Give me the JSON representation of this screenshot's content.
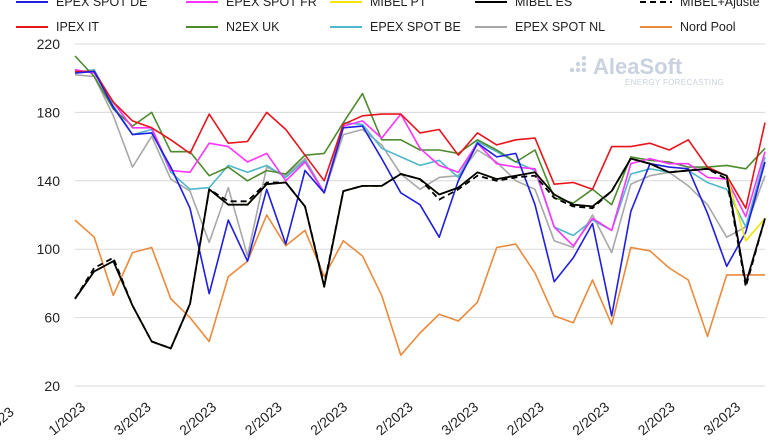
{
  "logo": {
    "name": "AleaSoft",
    "tagline": "ENERGY FORECASTING"
  },
  "chart_data": {
    "type": "line",
    "title": "",
    "xlabel": "",
    "ylabel": "",
    "ylim": [
      20,
      220
    ],
    "yticks": [
      20,
      60,
      100,
      140,
      180,
      220
    ],
    "x_tick_labels": [
      "/2023",
      "1/2023",
      "3/2023",
      "2/2023",
      "2/2023",
      "2/2023",
      "2/2023",
      "3/2023",
      "2/2023",
      "2/2023",
      "2/2023",
      "3/2023"
    ],
    "legend": [
      "EPEX SPOT DE",
      "EPEX SPOT FR",
      "MIBEL PT",
      "MIBEL ES",
      "MIBEL+Ajuste",
      "IPEX IT",
      "N2EX UK",
      "EPEX SPOT BE",
      "EPEX SPOT NL",
      "Nord Pool"
    ],
    "series": [
      {
        "name": "EPEX SPOT DE",
        "color": "#1f1fe0",
        "dash": "",
        "values": [
          203,
          204,
          183,
          167,
          168,
          148,
          124,
          74,
          117,
          93,
          135,
          103,
          146,
          133,
          171,
          172,
          153,
          133,
          126,
          107,
          140,
          162,
          154,
          156,
          126,
          81,
          95,
          115,
          61,
          122,
          150,
          148,
          147,
          121,
          90,
          110,
          151
        ]
      },
      {
        "name": "EPEX SPOT FR",
        "color": "#ff33ff",
        "dash": "",
        "values": [
          205,
          203,
          186,
          171,
          171,
          146,
          145,
          162,
          160,
          151,
          156,
          140,
          151,
          133,
          172,
          175,
          165,
          179,
          159,
          149,
          145,
          162,
          150,
          148,
          147,
          113,
          102,
          118,
          111,
          150,
          153,
          150,
          150,
          142,
          141,
          119,
          157
        ]
      },
      {
        "name": "MIBEL PT",
        "color": "#f2e600",
        "dash": "",
        "values": [
          71,
          87,
          93,
          67,
          46,
          42,
          68,
          135,
          126,
          126,
          138,
          139,
          125,
          78,
          134,
          137,
          137,
          144,
          141,
          132,
          136,
          145,
          141,
          143,
          145,
          132,
          126,
          125,
          134,
          153,
          150,
          145,
          146,
          147,
          143,
          105,
          118
        ]
      },
      {
        "name": "MIBEL ES",
        "color": "#000000",
        "dash": "",
        "values": [
          71,
          87,
          93,
          67,
          46,
          42,
          68,
          135,
          126,
          126,
          138,
          139,
          125,
          78,
          134,
          137,
          137,
          144,
          141,
          132,
          136,
          145,
          141,
          143,
          145,
          132,
          126,
          125,
          134,
          153,
          150,
          145,
          146,
          147,
          143,
          80,
          118
        ]
      },
      {
        "name": "MIBEL+Ajuste",
        "color": "#000000",
        "dash": "6 4",
        "values": [
          71,
          89,
          95,
          67,
          46,
          42,
          68,
          135,
          128,
          128,
          139,
          139,
          125,
          79,
          134,
          137,
          137,
          144,
          141,
          129,
          135,
          143,
          140,
          142,
          143,
          130,
          125,
          124,
          134,
          153,
          150,
          145,
          146,
          147,
          141,
          78,
          118
        ]
      },
      {
        "name": "IPEX IT",
        "color": "#e8141c",
        "dash": "",
        "values": [
          204,
          204,
          186,
          175,
          171,
          164,
          156,
          179,
          162,
          163,
          180,
          170,
          155,
          140,
          173,
          178,
          179,
          179,
          168,
          170,
          155,
          168,
          161,
          164,
          165,
          138,
          139,
          135,
          160,
          160,
          162,
          158,
          164,
          148,
          143,
          124,
          174
        ]
      },
      {
        "name": "N2EX UK",
        "color": "#4e8a2e",
        "dash": "",
        "values": [
          213,
          201,
          182,
          172,
          180,
          157,
          157,
          143,
          148,
          140,
          146,
          144,
          155,
          156,
          174,
          191,
          164,
          164,
          158,
          158,
          156,
          164,
          158,
          151,
          158,
          130,
          127,
          135,
          126,
          154,
          152,
          151,
          148,
          148,
          149,
          147,
          159
        ]
      },
      {
        "name": "EPEX SPOT BE",
        "color": "#4fb8cc",
        "dash": "",
        "values": [
          203,
          205,
          184,
          167,
          170,
          145,
          135,
          136,
          149,
          145,
          149,
          142,
          152,
          133,
          174,
          173,
          159,
          154,
          149,
          152,
          142,
          163,
          157,
          151,
          146,
          113,
          108,
          117,
          111,
          144,
          147,
          145,
          146,
          139,
          135,
          113,
          154
        ]
      },
      {
        "name": "EPEX SPOT NL",
        "color": "#a8a8a8",
        "dash": "",
        "values": [
          202,
          201,
          178,
          148,
          166,
          141,
          134,
          104,
          136,
          96,
          148,
          143,
          153,
          133,
          167,
          170,
          161,
          144,
          135,
          142,
          143,
          158,
          151,
          140,
          135,
          105,
          101,
          120,
          98,
          138,
          143,
          145,
          137,
          126,
          107,
          113,
          143
        ]
      },
      {
        "name": "Nord Pool",
        "color": "#ec8a3c",
        "dash": "",
        "values": [
          117,
          107,
          73,
          98,
          101,
          71,
          60,
          46,
          84,
          93,
          120,
          102,
          111,
          84,
          105,
          96,
          73,
          38,
          51,
          62,
          58,
          69,
          101,
          103,
          86,
          61,
          57,
          82,
          56,
          101,
          99,
          89,
          82,
          49,
          85,
          85,
          85
        ]
      }
    ]
  }
}
